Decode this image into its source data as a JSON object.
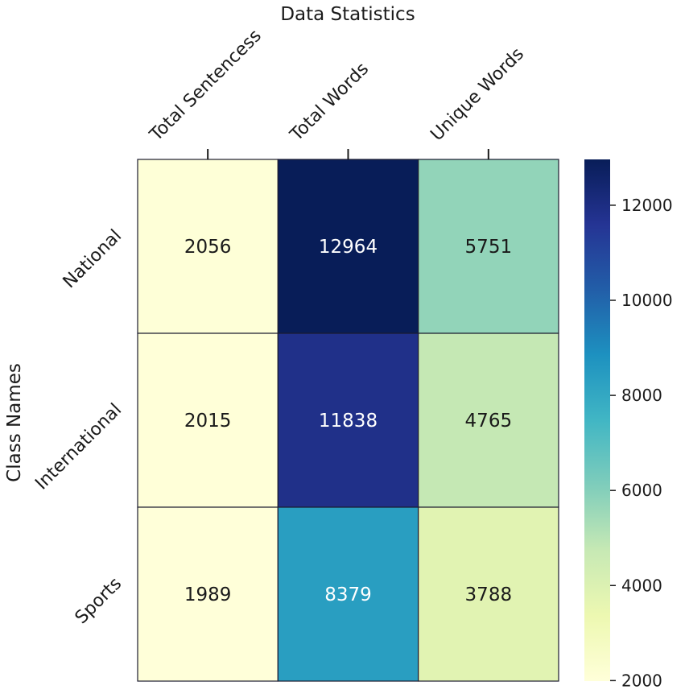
{
  "chart_data": {
    "type": "heatmap",
    "title": "Data Statistics",
    "xlabel": "",
    "ylabel": "Class Names",
    "columns": [
      "Total Sentencess",
      "Total Words",
      "Unique Words"
    ],
    "rows": [
      "National",
      "International",
      "Sports"
    ],
    "values": [
      [
        2056,
        12964,
        5751
      ],
      [
        2015,
        11838,
        4765
      ],
      [
        1989,
        8379,
        3788
      ]
    ],
    "colormap": "YlGnBu",
    "vmin": 1989,
    "vmax": 12964,
    "colorbar_ticks": [
      2000,
      4000,
      6000,
      8000,
      10000,
      12000
    ],
    "x_tick_position": "top",
    "legend": "colorbar-right"
  }
}
